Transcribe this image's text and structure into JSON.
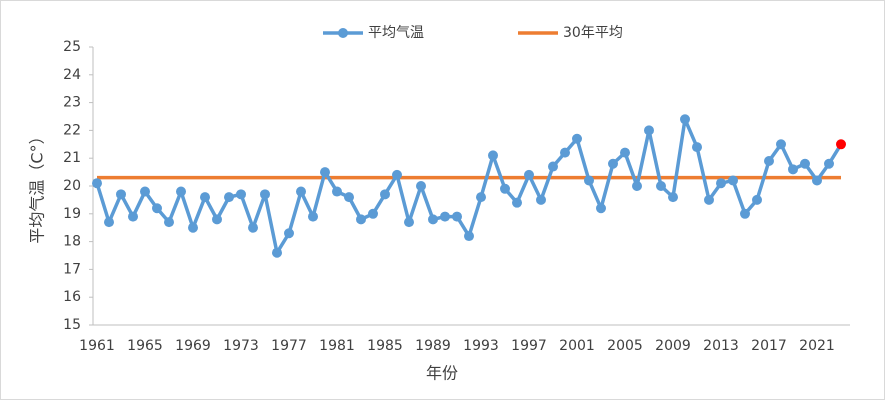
{
  "chart_data": {
    "type": "line",
    "x_title": "年份",
    "y_title": "平均气温（C°）",
    "categories": [
      1961,
      null,
      null,
      null,
      1965,
      null,
      null,
      null,
      1969,
      null,
      null,
      null,
      1973,
      null,
      null,
      null,
      1977,
      null,
      null,
      null,
      1981,
      null,
      null,
      null,
      1985,
      null,
      null,
      null,
      1989,
      null,
      null,
      null,
      1993,
      null,
      null,
      null,
      1997,
      null,
      null,
      null,
      2001,
      null,
      null,
      null,
      2005,
      null,
      null,
      null,
      2009,
      null,
      null,
      null,
      2013,
      null,
      null,
      null,
      2017,
      null,
      null,
      null,
      2021,
      null,
      null
    ],
    "series": [
      {
        "name": "平均气温",
        "color": "#5b9bd5",
        "markers": true,
        "highlight_last_color": "#ff0000",
        "values": [
          20.1,
          18.7,
          19.7,
          18.9,
          19.8,
          19.2,
          18.7,
          19.8,
          18.5,
          19.6,
          18.8,
          19.6,
          19.7,
          18.5,
          19.7,
          17.6,
          18.3,
          19.8,
          18.9,
          20.5,
          19.8,
          19.6,
          18.8,
          19.0,
          19.7,
          20.4,
          18.7,
          20.0,
          18.8,
          18.9,
          18.9,
          18.2,
          19.6,
          21.1,
          19.9,
          19.4,
          20.4,
          19.5,
          20.7,
          21.2,
          21.7,
          20.2,
          19.2,
          20.8,
          21.2,
          20.0,
          22.0,
          20.0,
          19.6,
          22.4,
          21.4,
          19.5,
          20.1,
          20.2,
          19.0,
          19.5,
          20.9,
          21.5,
          20.6,
          20.8,
          20.2,
          20.8,
          21.5
        ]
      },
      {
        "name": "30年平均",
        "color": "#ed7d31",
        "markers": false,
        "values": [
          20.3,
          20.3,
          20.3,
          20.3,
          20.3,
          20.3,
          20.3,
          20.3,
          20.3,
          20.3,
          20.3,
          20.3,
          20.3,
          20.3,
          20.3,
          20.3,
          20.3,
          20.3,
          20.3,
          20.3,
          20.3,
          20.3,
          20.3,
          20.3,
          20.3,
          20.3,
          20.3,
          20.3,
          20.3,
          20.3,
          20.3,
          20.3,
          20.3,
          20.3,
          20.3,
          20.3,
          20.3,
          20.3,
          20.3,
          20.3,
          20.3,
          20.3,
          20.3,
          20.3,
          20.3,
          20.3,
          20.3,
          20.3,
          20.3,
          20.3,
          20.3,
          20.3,
          20.3,
          20.3,
          20.3,
          20.3,
          20.3,
          20.3,
          20.3,
          20.3,
          20.3,
          20.3,
          20.3
        ]
      }
    ],
    "ylim": [
      15,
      25
    ],
    "yticks": [
      15,
      16,
      17,
      18,
      19,
      20,
      21,
      22,
      23,
      24,
      25
    ],
    "grid": false,
    "legend": "top"
  }
}
